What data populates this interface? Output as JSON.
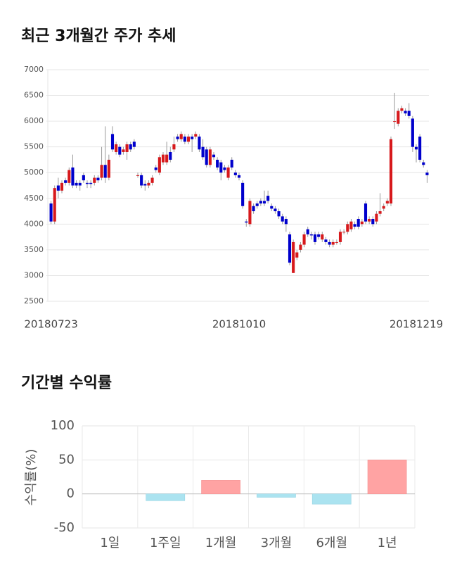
{
  "chart_data": [
    {
      "type": "candlestick",
      "title": "최근 3개월간 주가 추세",
      "categories": [
        "20180723",
        null,
        null,
        null,
        null,
        null,
        null,
        null,
        null,
        null,
        null,
        null,
        null,
        null,
        null,
        null,
        null,
        null,
        null,
        null,
        null,
        null,
        null,
        null,
        null,
        null,
        null,
        null,
        null,
        null,
        null,
        null,
        null,
        null,
        null,
        null,
        null,
        null,
        null,
        null,
        null,
        null,
        null,
        null,
        null,
        null,
        null,
        null,
        null,
        null,
        null,
        null,
        "20181010",
        null,
        null,
        null,
        null,
        null,
        null,
        null,
        null,
        null,
        null,
        null,
        null,
        null,
        null,
        null,
        null,
        null,
        null,
        null,
        null,
        null,
        null,
        null,
        null,
        null,
        null,
        null,
        null,
        null,
        null,
        null,
        null,
        null,
        null,
        null,
        null,
        null,
        null,
        null,
        null,
        null,
        null,
        null,
        null,
        null,
        null,
        null,
        null,
        "20181219",
        null,
        null,
        null
      ],
      "open": [
        4400,
        4050,
        4750,
        4650,
        4850,
        4800,
        5100,
        4800,
        4800,
        4950,
        4800,
        4800,
        4800,
        4900,
        4900,
        5150,
        4900,
        5750,
        5400,
        5500,
        5400,
        5400,
        5550,
        5600,
        4950,
        4950,
        4780,
        4750,
        4800,
        5100,
        5000,
        5200,
        5200,
        5400,
        5450,
        5700,
        5650,
        5700,
        5600,
        5700,
        5700,
        5700,
        5500,
        5450,
        5150,
        5350,
        5250,
        5200,
        5100,
        4900,
        5250,
        5000,
        4950,
        4800,
        4050,
        4000,
        4350,
        4400,
        4450,
        4450,
        4550,
        4350,
        4300,
        4250,
        4150,
        4100,
        3800,
        3050,
        3350,
        3500,
        3600,
        3900,
        3800,
        3800,
        3800,
        3700,
        3700,
        3650,
        3600,
        3650,
        3650,
        3850,
        3850,
        3900,
        4000,
        4100,
        4000,
        4400,
        4050,
        4100,
        4050,
        4200,
        4300,
        4400,
        4400,
        6000,
        5950,
        6200,
        6200,
        6200,
        6050,
        5500,
        5700,
        5200,
        5000
      ],
      "high": [
        4450,
        4750,
        4900,
        4850,
        4900,
        5100,
        5350,
        4850,
        4850,
        5000,
        4850,
        4850,
        4950,
        4950,
        5500,
        5900,
        5350,
        5900,
        5600,
        5550,
        5500,
        5600,
        5600,
        5650,
        5000,
        5000,
        4850,
        4850,
        4950,
        5150,
        5350,
        5400,
        5600,
        5500,
        5700,
        5750,
        5800,
        5750,
        5750,
        5750,
        5800,
        5750,
        5650,
        5500,
        5500,
        5400,
        5300,
        5250,
        5150,
        5150,
        5300,
        5050,
        5000,
        4850,
        4100,
        4500,
        4400,
        4450,
        4500,
        4650,
        4650,
        4400,
        4350,
        4300,
        4200,
        4150,
        3850,
        3700,
        3500,
        3650,
        3850,
        3950,
        3850,
        3850,
        3850,
        3850,
        3750,
        3700,
        3700,
        3700,
        3900,
        3900,
        4050,
        4100,
        4050,
        4150,
        4100,
        4450,
        4150,
        4150,
        4250,
        4600,
        4400,
        4500,
        5700,
        6550,
        6250,
        6300,
        6250,
        6350,
        6100,
        5550,
        5750,
        5250,
        5050
      ],
      "low": [
        4000,
        4000,
        4500,
        4600,
        4750,
        4750,
        4700,
        4700,
        4650,
        4800,
        4700,
        4700,
        4750,
        4800,
        4850,
        4800,
        4850,
        5400,
        5350,
        5300,
        5350,
        5250,
        5400,
        5450,
        4900,
        4700,
        4650,
        4700,
        4750,
        5000,
        4950,
        5150,
        5150,
        5200,
        5400,
        5600,
        5600,
        5550,
        5550,
        5400,
        5650,
        5400,
        5250,
        5100,
        5100,
        5250,
        5050,
        4850,
        5000,
        4850,
        5050,
        4900,
        4850,
        4300,
        3950,
        3950,
        4200,
        4300,
        4350,
        4350,
        4400,
        4250,
        4200,
        4100,
        4000,
        3850,
        3200,
        3050,
        3300,
        3450,
        3550,
        3750,
        3700,
        3600,
        3700,
        3650,
        3600,
        3550,
        3550,
        3600,
        3600,
        3800,
        3800,
        3850,
        3900,
        3900,
        3950,
        4000,
        4000,
        3950,
        4000,
        4150,
        4250,
        4350,
        4350,
        5850,
        5900,
        6150,
        6100,
        6050,
        5400,
        5200,
        5200,
        5100,
        4800
      ],
      "close": [
        4050,
        4700,
        4650,
        4800,
        4800,
        5050,
        4750,
        4750,
        4750,
        4850,
        4780,
        4780,
        4900,
        4850,
        5150,
        4900,
        5250,
        5450,
        5550,
        5350,
        5450,
        5550,
        5450,
        5500,
        4950,
        4750,
        4750,
        4800,
        4900,
        5050,
        5300,
        5350,
        5350,
        5250,
        5550,
        5650,
        5750,
        5600,
        5700,
        5650,
        5750,
        5450,
        5300,
        5150,
        5450,
        5300,
        5100,
        5000,
        5050,
        5100,
        5100,
        4950,
        4900,
        4350,
        4030,
        4450,
        4250,
        4350,
        4400,
        4400,
        4450,
        4300,
        4250,
        4150,
        4050,
        4000,
        3250,
        3650,
        3450,
        3600,
        3800,
        3800,
        3780,
        3650,
        3750,
        3800,
        3650,
        3600,
        3650,
        3650,
        3850,
        3850,
        4000,
        4050,
        3950,
        3950,
        4050,
        4050,
        4100,
        4000,
        4200,
        4250,
        4350,
        4450,
        5650,
        6000,
        6200,
        6250,
        6150,
        6100,
        5500,
        5450,
        5250,
        5150,
        4950
      ],
      "up_color": "#d7191c",
      "down_color": "#0000cc",
      "ylim": [
        2500,
        7000
      ],
      "yticks": [
        2500,
        3000,
        3500,
        4000,
        4500,
        5000,
        5500,
        6000,
        6500,
        7000
      ],
      "grid": true
    },
    {
      "type": "bar",
      "title": "기간별 수익률",
      "y_label": "수익률(%)",
      "categories": [
        "1일",
        "1주일",
        "1개월",
        "3개월",
        "6개월",
        "1년"
      ],
      "values": [
        0,
        -10,
        20,
        -5,
        -15,
        50
      ],
      "positive_color": "#ffa3a3",
      "negative_color": "#abe3f0",
      "ylim": [
        -50,
        100
      ],
      "yticks": [
        -50,
        0,
        50,
        100
      ],
      "grid": true
    }
  ]
}
